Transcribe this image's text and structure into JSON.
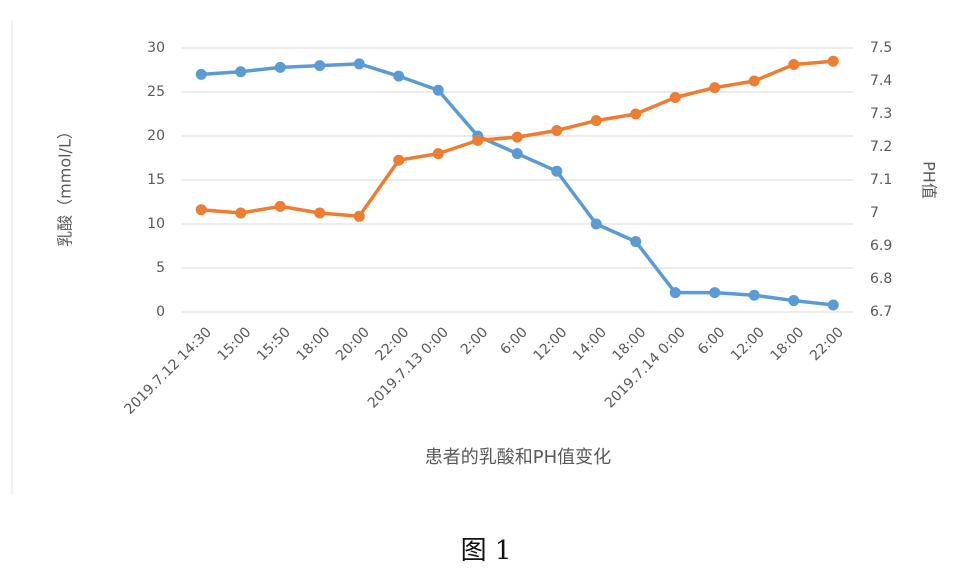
{
  "chart_data": {
    "type": "line",
    "x_label": "患者的乳酸和PH值变化",
    "y_label": "乳酸（mmol/L）",
    "y2_label": "PH值",
    "caption": "图 1",
    "categories": [
      "2019.7.12 14:30",
      "15:00",
      "15:50",
      "18:00",
      "20:00",
      "22:00",
      "2019.7.13 0:00",
      "2:00",
      "6:00",
      "12:00",
      "14:00",
      "18:00",
      "2019.7.14 0:00",
      "6:00",
      "12:00",
      "18:00",
      "22:00"
    ],
    "series": [
      {
        "name": "乳酸",
        "color": "#5b9bd5",
        "values": [
          27,
          27.3,
          27.8,
          28,
          28.2,
          26.8,
          25.2,
          20,
          18,
          16,
          10,
          8,
          2.2,
          2.2,
          1.9,
          1.3,
          0.8
        ]
      },
      {
        "name": "PH值",
        "color": "#ed7d31",
        "axis": "y2",
        "values": [
          7.01,
          7.0,
          7.02,
          7.0,
          6.99,
          7.16,
          7.18,
          7.22,
          7.23,
          7.25,
          7.28,
          7.3,
          7.35,
          7.38,
          7.4,
          7.45,
          7.46
        ]
      }
    ],
    "ylim": [
      0,
      30
    ],
    "yticks": [
      0,
      5,
      10,
      15,
      20,
      25,
      30
    ],
    "y2lim": [
      6.7,
      7.5
    ],
    "y2ticks": [
      6.7,
      6.8,
      6.9,
      7,
      7.1,
      7.2,
      7.3,
      7.4,
      7.5
    ],
    "grid": true
  }
}
